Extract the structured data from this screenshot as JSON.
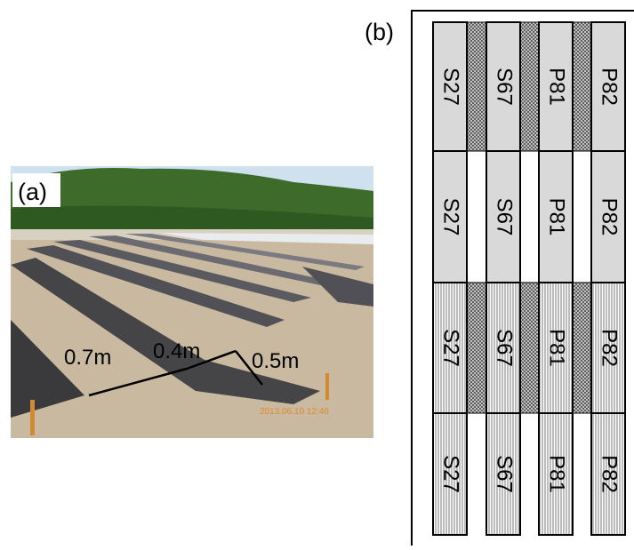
{
  "panel_a": {
    "label": "(a)",
    "annotations": [
      "0.7m",
      "0.4m",
      "0.5m"
    ],
    "timestamp": "2013.06.10 12:46"
  },
  "panel_b": {
    "label": "(b)",
    "rows": [
      [
        "S27",
        "S67",
        "P81",
        "P82"
      ],
      [
        "S27",
        "S67",
        "P81",
        "P82"
      ],
      [
        "S27",
        "S67",
        "P81",
        "P82"
      ],
      [
        "S27",
        "S67",
        "P81",
        "P82"
      ]
    ]
  }
}
